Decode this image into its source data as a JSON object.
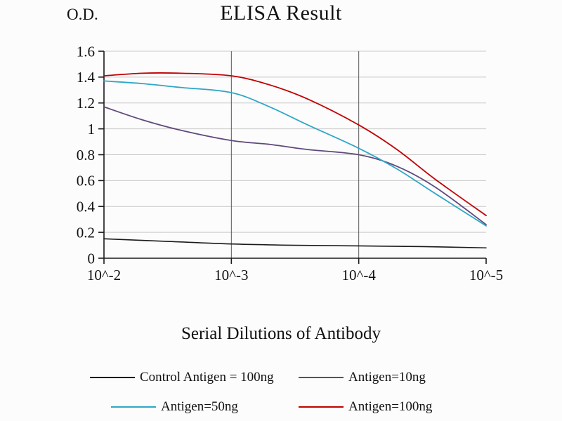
{
  "page": {
    "background": "#fcfcfc"
  },
  "chart_data": {
    "type": "line",
    "title": "ELISA Result",
    "ylabel": "O.D.",
    "xlabel": "Serial Dilutions of Antibody",
    "x_tick_labels": [
      "10^-2",
      "10^-3",
      "10^-4",
      "10^-5"
    ],
    "y_tick_labels": [
      "0",
      "0.2",
      "0.4",
      "0.6",
      "0.8",
      "1",
      "1.2",
      "1.4",
      "1.6"
    ],
    "y_ticks": [
      0,
      0.2,
      0.4,
      0.6,
      0.8,
      1,
      1.2,
      1.4,
      1.6
    ],
    "ylim": [
      0,
      1.6
    ],
    "x_decades": [
      0,
      3
    ],
    "grid": {
      "horizontal": true,
      "horizontal_color": "#c8c8c8",
      "vertical_at": [
        1,
        2
      ],
      "vertical_color": "#595959"
    },
    "axis_color": "#1a1a1a",
    "legend_position": "bottom",
    "series": [
      {
        "name": "Control Antigen = 100ng",
        "color": "#1a1a1a",
        "width": 1.6,
        "x": [
          0,
          0.5,
          1,
          1.5,
          2,
          2.5,
          3
        ],
        "values": [
          0.15,
          0.13,
          0.11,
          0.1,
          0.095,
          0.09,
          0.08
        ]
      },
      {
        "name": "Antigen=10ng",
        "color": "#5f497a",
        "width": 1.8,
        "x": [
          0,
          0.3,
          0.6,
          1,
          1.3,
          1.6,
          2,
          2.3,
          2.6,
          3
        ],
        "values": [
          1.17,
          1.07,
          0.99,
          0.91,
          0.88,
          0.84,
          0.8,
          0.71,
          0.55,
          0.26
        ]
      },
      {
        "name": "Antigen=50ng",
        "color": "#2fa6c7",
        "width": 1.8,
        "x": [
          0,
          0.3,
          0.6,
          1,
          1.3,
          1.6,
          2,
          2.3,
          2.6,
          3
        ],
        "values": [
          1.37,
          1.35,
          1.32,
          1.28,
          1.17,
          1.03,
          0.85,
          0.69,
          0.5,
          0.25
        ]
      },
      {
        "name": "Antigen=100ng",
        "color": "#c00000",
        "width": 1.8,
        "x": [
          0,
          0.3,
          0.6,
          1,
          1.3,
          1.6,
          2,
          2.3,
          2.6,
          3
        ],
        "values": [
          1.41,
          1.43,
          1.43,
          1.41,
          1.34,
          1.23,
          1.03,
          0.84,
          0.61,
          0.33
        ]
      }
    ]
  }
}
